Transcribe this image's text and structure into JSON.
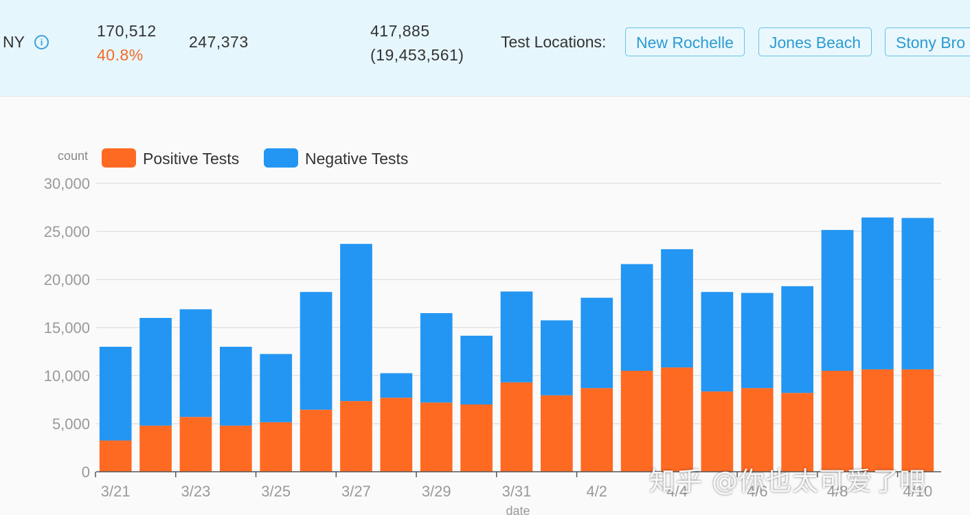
{
  "header": {
    "region": "NY",
    "positive_total": "170,512",
    "positive_pct": "40.8%",
    "negative_total": "247,373",
    "tests_total": "417,885",
    "population": "(19,453,561)",
    "locations_label": "Test Locations:",
    "locations": [
      "New Rochelle",
      "Jones Beach",
      "Stony Bro"
    ]
  },
  "colors": {
    "positive": "#ff6a22",
    "negative": "#2396f3",
    "accent": "#2c9bd1",
    "pct": "#f26b25"
  },
  "chart_data": {
    "type": "bar",
    "stacked": true,
    "ylabel": "count",
    "xlabel": "date",
    "ylim": [
      0,
      30000
    ],
    "y_ticks": [
      "0",
      "5,000",
      "10,000",
      "15,000",
      "20,000",
      "25,000",
      "30,000"
    ],
    "categories": [
      "3/21",
      "3/22",
      "3/23",
      "3/24",
      "3/25",
      "3/26",
      "3/27",
      "3/28",
      "3/29",
      "3/30",
      "3/31",
      "4/1",
      "4/2",
      "4/3",
      "4/4",
      "4/5",
      "4/6",
      "4/7",
      "4/8",
      "4/9",
      "4/10"
    ],
    "x_tick_labels": [
      "3/21",
      "3/23",
      "3/25",
      "3/27",
      "3/29",
      "3/31",
      "4/2",
      "4/4",
      "4/6",
      "4/8",
      "4/10"
    ],
    "legend_position": "top-left",
    "series": [
      {
        "name": "Positive Tests",
        "values": [
          3250,
          4800,
          5700,
          4800,
          5150,
          6450,
          7350,
          7700,
          7200,
          7000,
          9300,
          7950,
          8700,
          10500,
          10850,
          8350,
          8700,
          8200,
          10500,
          10650,
          10650
        ]
      },
      {
        "name": "Negative Tests",
        "values": [
          9750,
          11200,
          11200,
          8200,
          7100,
          12250,
          16350,
          2550,
          9300,
          7150,
          9450,
          7800,
          9400,
          11100,
          12300,
          10350,
          9900,
          11100,
          14650,
          15800,
          15750
        ]
      }
    ]
  },
  "watermark": "知乎 @你也太可爱了吧"
}
